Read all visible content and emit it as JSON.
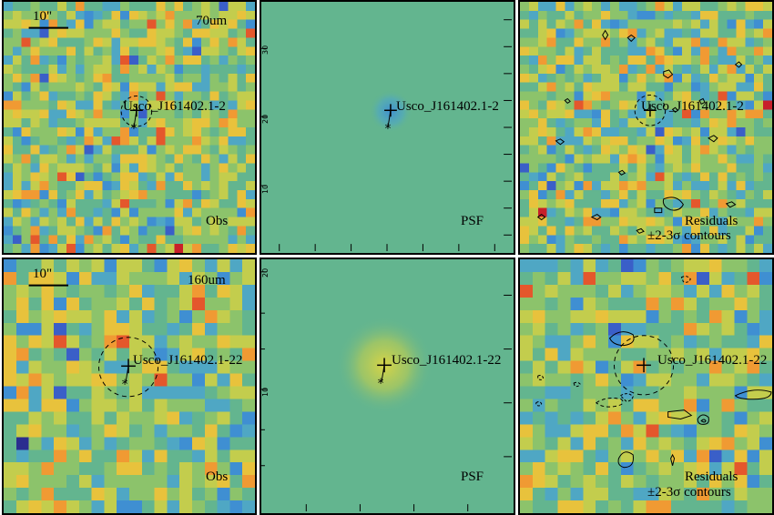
{
  "source_name": "Usco_J161402.1-2",
  "source_name_long": "Usco_J161402.1-22",
  "scale_label": "10\"",
  "rows": [
    {
      "band": "70um",
      "panels": [
        {
          "kind": "obs",
          "label": "Obs",
          "seed": 11
        },
        {
          "kind": "psf",
          "label": "PSF",
          "psf_color": "#3f8fd2",
          "y_ticks": [
            "30",
            "20",
            "10"
          ]
        },
        {
          "kind": "res",
          "label_line1": "Residuals",
          "label_line2": "±2-3σ contours",
          "seed": 23
        }
      ]
    },
    {
      "band": "160um",
      "panels": [
        {
          "kind": "obs",
          "label": "Obs",
          "seed": 37
        },
        {
          "kind": "psf",
          "label": "PSF",
          "psf_color": "#c8d44a",
          "y_ticks": [
            "20",
            "10"
          ]
        },
        {
          "kind": "res",
          "label_line1": "Residuals",
          "label_line2": "±2-3σ contours",
          "seed": 53
        }
      ]
    }
  ],
  "colors": {
    "background": "#63b58f",
    "palette": [
      "#2b2d8f",
      "#3a5fc8",
      "#3f8fd2",
      "#4fa7c4",
      "#63b58f",
      "#8cc36b",
      "#c3cd4d",
      "#e8c23c",
      "#f09a33",
      "#e4572c",
      "#c8202a"
    ]
  }
}
